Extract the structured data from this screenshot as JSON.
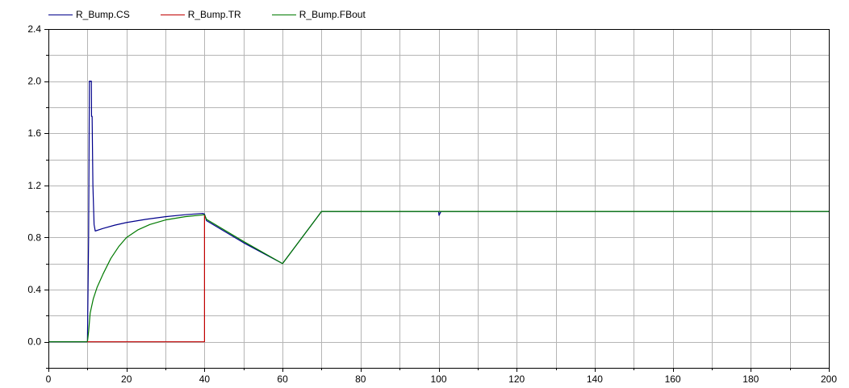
{
  "chart_data": {
    "type": "line",
    "title": "",
    "xlabel": "",
    "ylabel": "",
    "xlim": [
      0,
      200
    ],
    "ylim": [
      -0.2,
      2.4
    ],
    "grid": true,
    "legend_position": "top-left",
    "x_ticks": [
      0,
      20,
      40,
      60,
      80,
      100,
      120,
      140,
      160,
      180,
      200
    ],
    "x_tick_labels": [
      "0",
      "20",
      "40",
      "60",
      "80",
      "100",
      "120",
      "140",
      "160",
      "180",
      "200"
    ],
    "y_ticks": [
      0.0,
      0.4,
      0.8,
      1.2,
      1.6,
      2.0,
      2.4
    ],
    "y_tick_labels": [
      "0.0",
      "0.4",
      "0.8",
      "1.2",
      "1.6",
      "2.0",
      "2.4"
    ],
    "series": [
      {
        "name": "R_Bump.CS",
        "color": "#00008b",
        "points": [
          [
            0,
            0
          ],
          [
            10,
            0
          ],
          [
            10.3,
            0.8
          ],
          [
            10.5,
            2.0
          ],
          [
            11.0,
            2.0
          ],
          [
            11.05,
            1.73
          ],
          [
            11.2,
            1.73
          ],
          [
            11.4,
            1.2
          ],
          [
            11.7,
            0.9
          ],
          [
            12,
            0.85
          ],
          [
            14,
            0.87
          ],
          [
            17,
            0.895
          ],
          [
            20,
            0.915
          ],
          [
            25,
            0.94
          ],
          [
            30,
            0.96
          ],
          [
            35,
            0.975
          ],
          [
            39.5,
            0.985
          ],
          [
            40,
            0.98
          ],
          [
            40.5,
            0.93
          ],
          [
            50,
            0.76
          ],
          [
            60,
            0.6
          ],
          [
            70,
            1.0
          ],
          [
            100,
            1.0
          ],
          [
            100.1,
            0.97
          ],
          [
            100.6,
            1.0
          ],
          [
            200,
            1.0
          ]
        ]
      },
      {
        "name": "R_Bump.TR",
        "color": "#c00000",
        "points": [
          [
            10,
            0
          ],
          [
            40,
            0
          ],
          [
            40,
            0.97
          ]
        ]
      },
      {
        "name": "R_Bump.FBout",
        "color": "#007a00",
        "points": [
          [
            0,
            0
          ],
          [
            10,
            0
          ],
          [
            10.3,
            0.08
          ],
          [
            10.7,
            0.22
          ],
          [
            11.5,
            0.33
          ],
          [
            12.5,
            0.42
          ],
          [
            14,
            0.52
          ],
          [
            16,
            0.64
          ],
          [
            18,
            0.73
          ],
          [
            20,
            0.8
          ],
          [
            23,
            0.86
          ],
          [
            26,
            0.9
          ],
          [
            30,
            0.935
          ],
          [
            35,
            0.96
          ],
          [
            40,
            0.975
          ],
          [
            40.5,
            0.94
          ],
          [
            50,
            0.77
          ],
          [
            60,
            0.6
          ],
          [
            70,
            1.0
          ],
          [
            200,
            1.0
          ]
        ]
      }
    ]
  }
}
